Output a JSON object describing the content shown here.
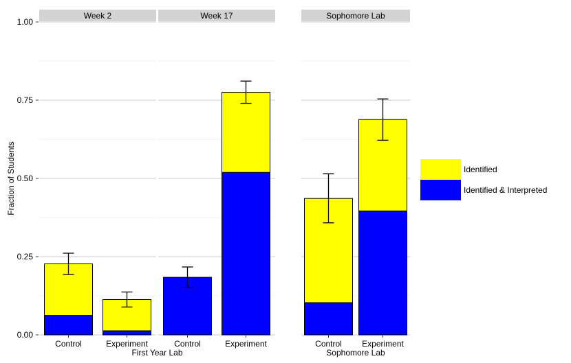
{
  "chart_data": {
    "type": "bar",
    "stacked": true,
    "ylabel": "Fraction of Students",
    "ylim": [
      0,
      1
    ],
    "y_ticks": [
      "0.00",
      "0.25",
      "0.50",
      "0.75",
      "1.00"
    ],
    "colors": {
      "identified": "#ffff00",
      "interpreted": "#0000ff",
      "strip": "#d3d3d3",
      "grid": "#e5e5e5"
    },
    "legend": {
      "position": "right",
      "items": [
        {
          "key": "identified",
          "label": "Identified"
        },
        {
          "key": "interpreted",
          "label": "Identified & Interpreted"
        }
      ]
    },
    "groups": [
      {
        "xlabel": "First Year Lab",
        "panels": [
          0,
          1
        ]
      },
      {
        "xlabel": "Sophomore Lab",
        "panels": [
          2
        ]
      }
    ],
    "panels": [
      {
        "strip": "Week 2",
        "bars": [
          {
            "category": "Control",
            "interpreted": 0.062,
            "total": 0.227,
            "err": [
              0.193,
              0.261
            ]
          },
          {
            "category": "Experiment",
            "interpreted": 0.013,
            "total": 0.113,
            "err": [
              0.089,
              0.137
            ]
          }
        ]
      },
      {
        "strip": "Week 17",
        "bars": [
          {
            "category": "Control",
            "interpreted": 0.184,
            "total": 0.184,
            "err": [
              0.151,
              0.217
            ]
          },
          {
            "category": "Experiment",
            "interpreted": 0.519,
            "total": 0.775,
            "err": [
              0.74,
              0.811
            ]
          }
        ]
      },
      {
        "strip": "Sophomore Lab",
        "bars": [
          {
            "category": "Control",
            "interpreted": 0.103,
            "total": 0.436,
            "err": [
              0.358,
              0.515
            ]
          },
          {
            "category": "Experiment",
            "interpreted": 0.396,
            "total": 0.688,
            "err": [
              0.622,
              0.754
            ]
          }
        ]
      }
    ]
  }
}
